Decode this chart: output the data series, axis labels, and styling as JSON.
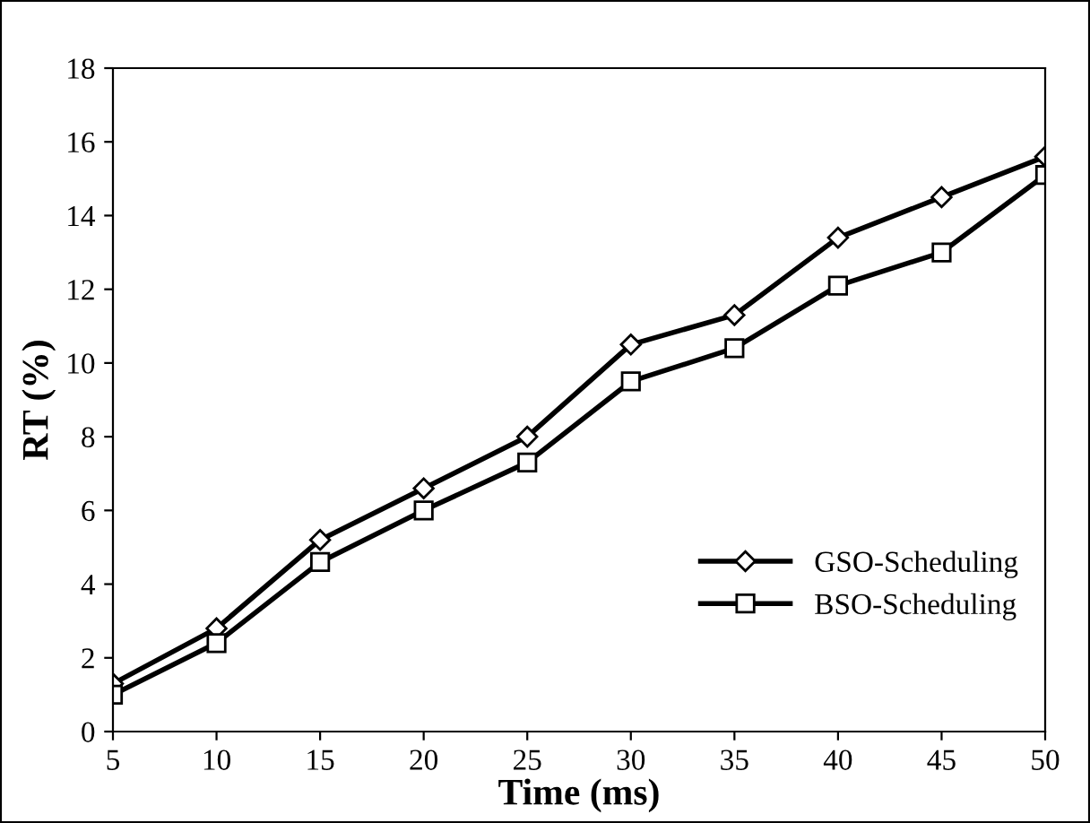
{
  "chart_data": {
    "type": "line",
    "xlabel": "Time (ms)",
    "ylabel": "RT (%)",
    "x": [
      5,
      10,
      15,
      20,
      25,
      30,
      35,
      40,
      45,
      50
    ],
    "series": [
      {
        "name": "GSO-Scheduling",
        "color": "#000000",
        "marker": "diamond",
        "values": [
          1.3,
          2.8,
          5.2,
          6.6,
          8.0,
          10.5,
          11.3,
          13.4,
          14.5,
          15.6
        ]
      },
      {
        "name": "BSO-Scheduling",
        "color": "#000000",
        "marker": "square",
        "values": [
          1.0,
          2.4,
          4.6,
          6.0,
          7.3,
          9.5,
          10.4,
          12.1,
          13.0,
          15.1
        ]
      }
    ],
    "xlim": [
      5,
      50
    ],
    "xticks": [
      5,
      10,
      15,
      20,
      25,
      30,
      35,
      40,
      45,
      50
    ],
    "ylim": [
      0,
      18
    ],
    "yticks": [
      0,
      2,
      4,
      6,
      8,
      10,
      12,
      14,
      16,
      18
    ],
    "grid": false,
    "legend": "center right",
    "line_style": "solid"
  }
}
